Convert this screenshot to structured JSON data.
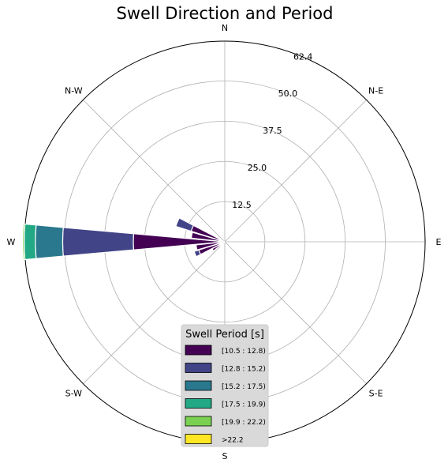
{
  "chart_data": {
    "type": "windrose",
    "title": "Swell Direction and Period",
    "directions": [
      "N",
      "N-E",
      "E",
      "S-E",
      "S",
      "S-W",
      "W",
      "N-W"
    ],
    "rmax": 62.4,
    "radial_ticks": [
      12.5,
      25.0,
      37.5,
      50.0
    ],
    "radial_tick_labels": [
      "12.5",
      "25.0",
      "37.5",
      "50.0",
      "62.4"
    ],
    "grid": true,
    "legend": {
      "title": "Swell Period [s]",
      "placement": "bottom-center",
      "entries": [
        "[10.5 : 12.8)",
        "[12.8 : 15.2)",
        "[15.2 : 17.5)",
        "[17.5 : 19.9)",
        "[19.9 : 22.2)",
        ">22.2"
      ]
    },
    "colors": [
      "#440154",
      "#414487",
      "#2a788e",
      "#22a884",
      "#7ad151",
      "#fde725"
    ],
    "bins": [
      {
        "direction_deg": 270.0,
        "values": [
          28.5,
          22.0,
          8.5,
          3.5,
          0.5,
          0.0
        ]
      },
      {
        "direction_deg": 258.75,
        "values": [
          9.0,
          0.0,
          0.0,
          0.0,
          0.0,
          0.0
        ]
      },
      {
        "direction_deg": 281.25,
        "values": [
          10.5,
          0.0,
          0.0,
          0.0,
          0.0,
          0.0
        ]
      },
      {
        "direction_deg": 292.5,
        "values": [
          11.0,
          5.0,
          0.0,
          0.0,
          0.0,
          0.0
        ]
      },
      {
        "direction_deg": 247.5,
        "values": [
          8.5,
          1.5,
          0.0,
          0.0,
          0.0,
          0.0
        ]
      },
      {
        "direction_deg": 236.25,
        "values": [
          4.5,
          0.0,
          0.0,
          0.0,
          0.0,
          0.0
        ]
      },
      {
        "direction_deg": 225.0,
        "values": [
          2.0,
          0.0,
          0.0,
          0.0,
          0.0,
          0.0
        ]
      }
    ]
  }
}
